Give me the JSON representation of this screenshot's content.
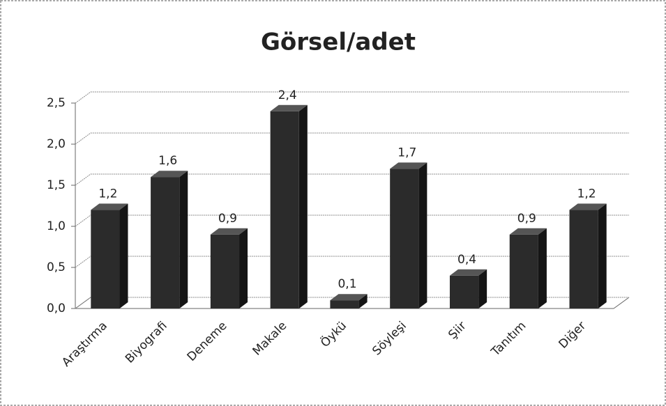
{
  "chart_data": {
    "type": "bar",
    "title": "Görsel/adet",
    "categories": [
      "Araştırma",
      "Biyografi",
      "Deneme",
      "Makale",
      "Öykü",
      "Söyleşi",
      "Şiir",
      "Tanıtım",
      "Diğer"
    ],
    "values": [
      1.2,
      1.6,
      0.9,
      2.4,
      0.1,
      1.7,
      0.4,
      0.9,
      1.2
    ],
    "value_labels": [
      "1,2",
      "1,6",
      "0,9",
      "2,4",
      "0,1",
      "1,7",
      "0,4",
      "0,9",
      "1,2"
    ],
    "color": "#2b2b2b",
    "ylim": [
      0,
      2.5
    ],
    "yticks": [
      {
        "value": 0,
        "label": "0,0"
      },
      {
        "value": 0.5,
        "label": "0,5"
      },
      {
        "value": 1,
        "label": "1,0"
      },
      {
        "value": 1.5,
        "label": "1,5"
      },
      {
        "value": 2,
        "label": "2,0"
      },
      {
        "value": 2.5,
        "label": "2,5"
      }
    ],
    "grid": true
  }
}
